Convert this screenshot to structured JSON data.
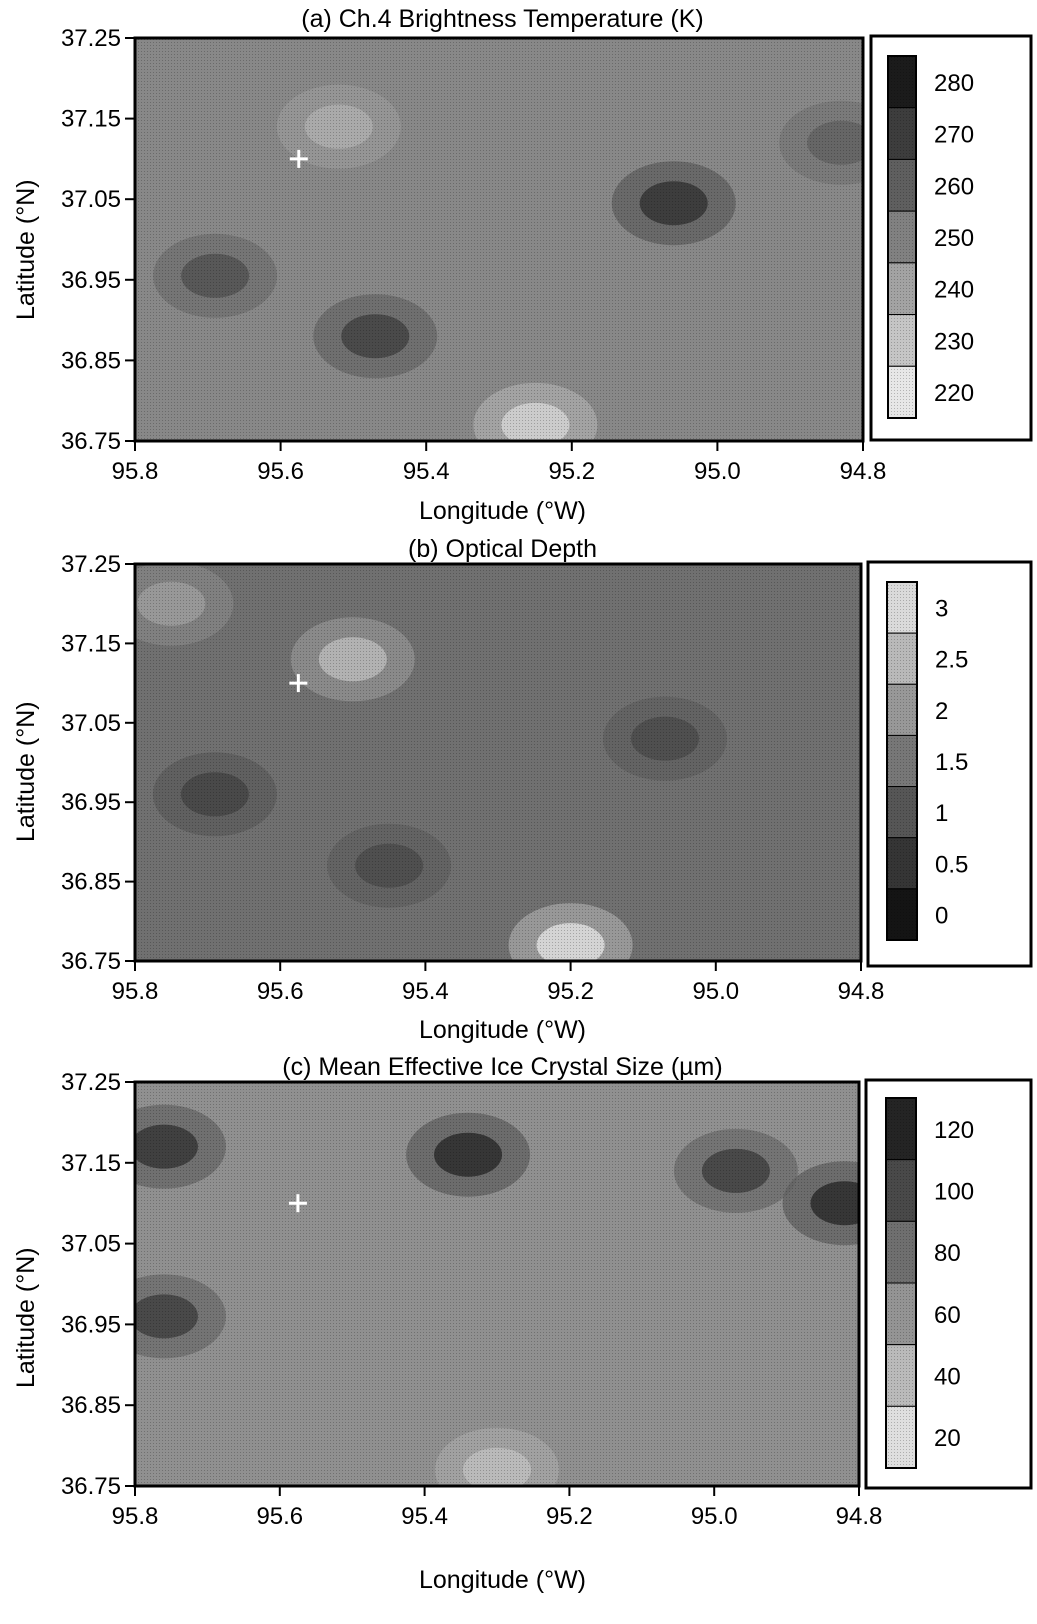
{
  "panels": [
    {
      "title": "(a) Ch.4 Brightness Temperature (K)",
      "xlabel": "Longitude (°W)",
      "ylabel": "Latitude (°N)",
      "colorbar_ticks": [
        "280",
        "270",
        "260",
        "250",
        "240",
        "230",
        "220"
      ]
    },
    {
      "title": "(b) Optical Depth",
      "xlabel": "Longitude (°W)",
      "ylabel": "Latitude (°N)",
      "colorbar_ticks": [
        "3.0",
        "2.5",
        "2.0",
        "1.5",
        "1.0",
        "0.5",
        "0.0"
      ]
    },
    {
      "title": "(c) Mean Effective Ice Crystal Size (µm)",
      "xlabel": "Longitude (°W)",
      "ylabel": "Latitude (°N)",
      "colorbar_ticks": [
        "120",
        "100",
        "80",
        "60",
        "40",
        "20"
      ]
    }
  ],
  "chart_data": [
    {
      "type": "heatmap",
      "title": "(a) Ch.4 Brightness Temperature (K)",
      "xlabel": "Longitude (°W)",
      "ylabel": "Latitude (°N)",
      "x_ticks": [
        "95.8",
        "95.6",
        "95.4",
        "95.2",
        "95.0",
        "94.8"
      ],
      "y_ticks": [
        "37.25",
        "37.15",
        "37.05",
        "36.95",
        "36.85",
        "36.75"
      ],
      "xlim": [
        95.8,
        94.8
      ],
      "ylim": [
        36.75,
        37.25
      ],
      "colorbar_ticks": [
        280,
        270,
        260,
        250,
        240,
        230,
        220
      ],
      "colorbar_range": [
        218,
        284
      ],
      "colorbar_dark_is_high": true,
      "background_value": 248,
      "features": [
        {
          "lon": 95.69,
          "lat": 36.955,
          "value": 262
        },
        {
          "lon": 95.47,
          "lat": 36.88,
          "value": 266
        },
        {
          "lon": 95.06,
          "lat": 37.045,
          "value": 270
        },
        {
          "lon": 94.83,
          "lat": 37.12,
          "value": 258
        },
        {
          "lon": 95.52,
          "lat": 37.14,
          "value": 238
        },
        {
          "lon": 95.25,
          "lat": 36.77,
          "value": 228
        }
      ],
      "marker": {
        "lon": 95.575,
        "lat": 37.1,
        "symbol": "+"
      }
    },
    {
      "type": "heatmap",
      "title": "(b) Optical Depth",
      "xlabel": "Longitude (°W)",
      "ylabel": "Latitude (°N)",
      "x_ticks": [
        "95.8",
        "95.6",
        "95.4",
        "95.2",
        "95.0",
        "94.8"
      ],
      "y_ticks": [
        "37.25",
        "37.15",
        "37.05",
        "36.95",
        "36.85",
        "36.75"
      ],
      "xlim": [
        95.8,
        94.8
      ],
      "ylim": [
        36.75,
        37.25
      ],
      "colorbar_ticks": [
        3.0,
        2.5,
        2.0,
        1.5,
        1.0,
        0.5,
        0.0
      ],
      "colorbar_range": [
        -0.1,
        3.3
      ],
      "colorbar_dark_is_high": false,
      "background_value": 1.4,
      "features": [
        {
          "lon": 95.69,
          "lat": 36.96,
          "value": 0.8
        },
        {
          "lon": 95.45,
          "lat": 36.87,
          "value": 0.9
        },
        {
          "lon": 95.07,
          "lat": 37.03,
          "value": 0.9
        },
        {
          "lon": 95.5,
          "lat": 37.13,
          "value": 2.4
        },
        {
          "lon": 95.75,
          "lat": 37.2,
          "value": 2.0
        },
        {
          "lon": 95.2,
          "lat": 36.77,
          "value": 2.9
        }
      ],
      "marker": {
        "lon": 95.575,
        "lat": 37.1,
        "symbol": "+"
      }
    },
    {
      "type": "heatmap",
      "title": "(c) Mean Effective Ice Crystal Size (µm)",
      "xlabel": "Longitude (°W)",
      "ylabel": "Latitude (°N)",
      "x_ticks": [
        "95.8",
        "95.6",
        "95.4",
        "95.2",
        "95.0",
        "94.8"
      ],
      "y_ticks": [
        "37.25",
        "37.15",
        "37.05",
        "36.95",
        "36.85",
        "36.75"
      ],
      "xlim": [
        95.8,
        94.8
      ],
      "ylim": [
        36.75,
        37.25
      ],
      "colorbar_ticks": [
        120,
        100,
        80,
        60,
        40,
        20
      ],
      "colorbar_range": [
        12,
        132
      ],
      "colorbar_dark_is_high": true,
      "background_value": 62,
      "features": [
        {
          "lon": 95.34,
          "lat": 37.16,
          "value": 110
        },
        {
          "lon": 94.97,
          "lat": 37.14,
          "value": 100
        },
        {
          "lon": 94.82,
          "lat": 37.1,
          "value": 110
        },
        {
          "lon": 95.76,
          "lat": 37.17,
          "value": 105
        },
        {
          "lon": 95.76,
          "lat": 36.96,
          "value": 100
        },
        {
          "lon": 95.3,
          "lat": 36.77,
          "value": 40
        }
      ],
      "marker": {
        "lon": 95.575,
        "lat": 37.1,
        "symbol": "+"
      }
    }
  ]
}
